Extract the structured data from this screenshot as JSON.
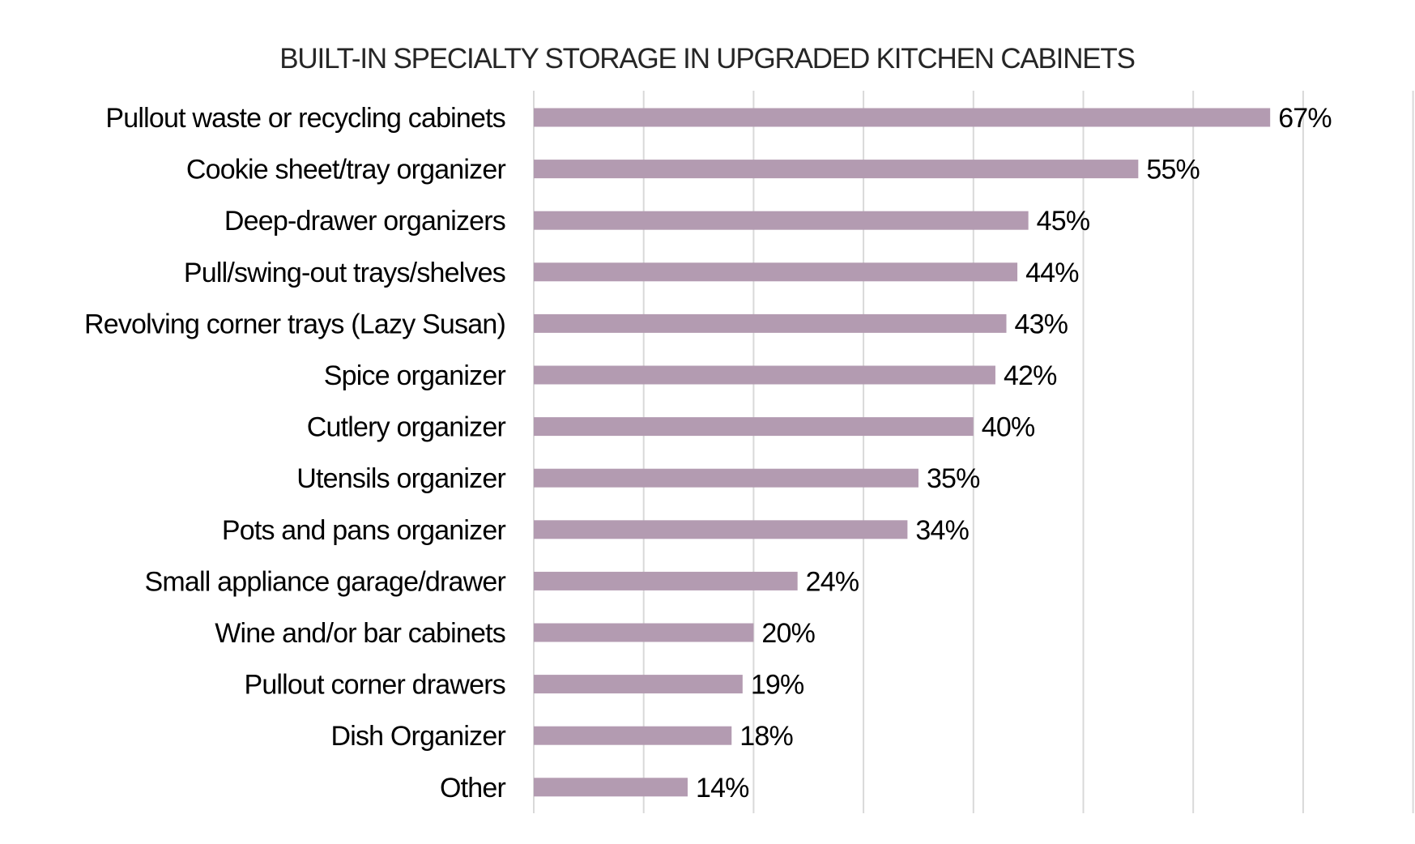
{
  "chart_data": {
    "type": "bar",
    "orientation": "horizontal",
    "title": "BUILT-IN SPECIALTY STORAGE IN UPGRADED KITCHEN CABINETS",
    "xlabel": "",
    "ylabel": "",
    "xlim": [
      0,
      80
    ],
    "grid": true,
    "legend": "none",
    "bar_color": "#b39bb1",
    "categories": [
      "Pullout waste or recycling cabinets",
      "Cookie sheet/tray organizer",
      "Deep-drawer organizers",
      "Pull/swing-out trays/shelves",
      "Revolving corner trays (Lazy Susan)",
      "Spice organizer",
      "Cutlery organizer",
      "Utensils organizer",
      "Pots and pans organizer",
      "Small appliance garage/drawer",
      "Wine and/or bar cabinets",
      "Pullout corner drawers",
      "Dish Organizer",
      "Other"
    ],
    "values": [
      67,
      55,
      45,
      44,
      43,
      42,
      40,
      35,
      34,
      24,
      20,
      19,
      18,
      14
    ],
    "data_labels": [
      "67%",
      "55%",
      "45%",
      "44%",
      "43%",
      "42%",
      "40%",
      "35%",
      "34%",
      "24%",
      "20%",
      "19%",
      "18%",
      "14%"
    ]
  }
}
